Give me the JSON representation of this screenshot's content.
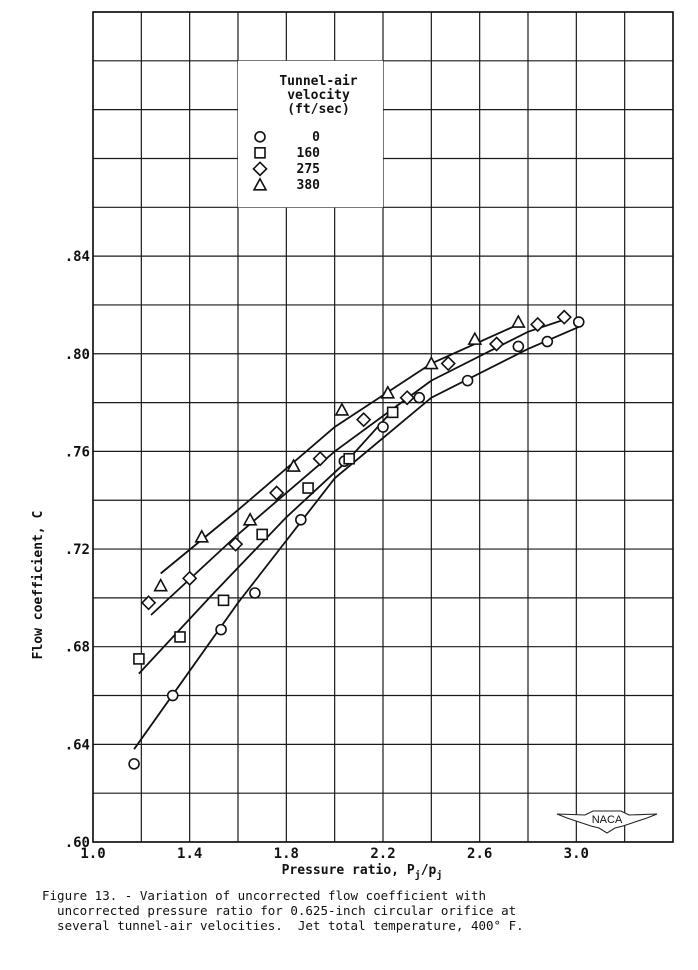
{
  "chart_data": {
    "type": "scatter",
    "title": "",
    "xlabel": "Pressure ratio, Pj/pj",
    "ylabel": "Flow coefficient, C",
    "xlim": [
      1.0,
      3.4
    ],
    "ylim": [
      0.6,
      0.94
    ],
    "x_ticks": [
      "1.0",
      "1.4",
      "1.8",
      "2.2",
      "2.6",
      "3.0"
    ],
    "y_ticks": [
      ".60",
      ".64",
      ".68",
      ".72",
      ".76",
      ".80",
      ".84"
    ],
    "grid": true,
    "grid_x_step": 0.2,
    "grid_y_step": 0.02,
    "legend": {
      "title": [
        "Tunnel-air",
        "velocity",
        "(ft/sec)"
      ],
      "position": "upper-center",
      "entries": [
        {
          "marker": "circle",
          "label": "0"
        },
        {
          "marker": "square",
          "label": "160"
        },
        {
          "marker": "diamond",
          "label": "275"
        },
        {
          "marker": "triangle",
          "label": "380"
        }
      ]
    },
    "series": [
      {
        "name": "0",
        "marker": "circle",
        "x": [
          1.17,
          1.33,
          1.53,
          1.67,
          1.86,
          2.04,
          2.2,
          2.35,
          2.55,
          2.76,
          2.88,
          3.01
        ],
        "y": [
          0.632,
          0.66,
          0.687,
          0.702,
          0.732,
          0.756,
          0.77,
          0.782,
          0.789,
          0.803,
          0.805,
          0.813
        ],
        "fit_line": {
          "x": [
            1.17,
            1.6,
            2.0,
            2.4,
            2.8,
            3.01
          ],
          "y": [
            0.638,
            0.698,
            0.749,
            0.782,
            0.802,
            0.811
          ]
        }
      },
      {
        "name": "160",
        "marker": "square",
        "x": [
          1.19,
          1.36,
          1.54,
          1.7,
          1.89,
          2.06,
          2.24
        ],
        "y": [
          0.675,
          0.684,
          0.699,
          0.726,
          0.745,
          0.757,
          0.776
        ],
        "fit_line": {
          "x": [
            1.19,
            1.5,
            1.8,
            2.05,
            2.26
          ],
          "y": [
            0.669,
            0.702,
            0.733,
            0.756,
            0.779
          ]
        }
      },
      {
        "name": "275",
        "marker": "diamond",
        "x": [
          1.23,
          1.4,
          1.59,
          1.76,
          1.94,
          2.12,
          2.3,
          2.47,
          2.67,
          2.84,
          2.95
        ],
        "y": [
          0.698,
          0.708,
          0.722,
          0.743,
          0.757,
          0.773,
          0.782,
          0.796,
          0.804,
          0.812,
          0.815
        ],
        "fit_line": {
          "x": [
            1.24,
            1.6,
            2.0,
            2.4,
            2.8,
            2.95
          ],
          "y": [
            0.693,
            0.726,
            0.76,
            0.789,
            0.809,
            0.814
          ]
        }
      },
      {
        "name": "380",
        "marker": "triangle",
        "x": [
          1.28,
          1.45,
          1.65,
          1.83,
          2.03,
          2.22,
          2.4,
          2.58,
          2.76
        ],
        "y": [
          0.705,
          0.725,
          0.732,
          0.754,
          0.777,
          0.784,
          0.796,
          0.806,
          0.813
        ],
        "fit_line": {
          "x": [
            1.28,
            1.6,
            2.0,
            2.4,
            2.76
          ],
          "y": [
            0.71,
            0.736,
            0.77,
            0.796,
            0.812
          ]
        }
      }
    ],
    "annotations": [
      "NACA"
    ]
  },
  "axes": {
    "x_label_main": "Pressure ratio, P",
    "x_label_sub1": "j",
    "x_label_slash": "/p",
    "x_label_sub2": "j",
    "y_label": "Flow coefficient, C"
  },
  "logo": {
    "text": "NACA"
  },
  "caption": {
    "line1": "Figure 13. - Variation of uncorrected flow coefficient with",
    "line2": "  uncorrected pressure ratio for 0.625-inch circular orifice at",
    "line3": "  several tunnel-air velocities.  Jet total temperature, 400° F."
  }
}
